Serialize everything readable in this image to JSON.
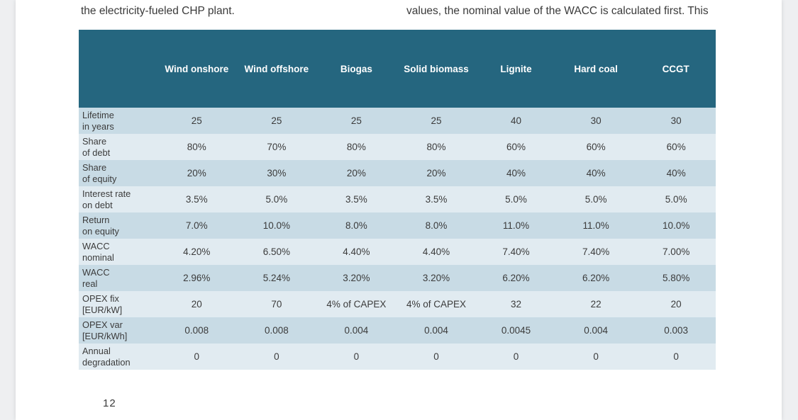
{
  "text": {
    "left_fragment": "the electricity-fueled CHP plant.",
    "right_fragment": "values, the nominal value of the WACC is calculated first. This"
  },
  "table": {
    "columns": [
      "Wind onshore",
      "Wind offshore",
      "Biogas",
      "Solid biomass",
      "Lignite",
      "Hard coal",
      "CCGT"
    ],
    "rows": [
      {
        "label_1": "Lifetime",
        "label_2": "in years",
        "values": [
          "25",
          "25",
          "25",
          "25",
          "40",
          "30",
          "30"
        ]
      },
      {
        "label_1": "Share",
        "label_2": "of debt",
        "values": [
          "80%",
          "70%",
          "80%",
          "80%",
          "60%",
          "60%",
          "60%"
        ]
      },
      {
        "label_1": "Share",
        "label_2": "of equity",
        "values": [
          "20%",
          "30%",
          "20%",
          "20%",
          "40%",
          "40%",
          "40%"
        ]
      },
      {
        "label_1": "Interest rate",
        "label_2": "on debt",
        "values": [
          "3.5%",
          "5.0%",
          "3.5%",
          "3.5%",
          "5.0%",
          "5.0%",
          "5.0%"
        ]
      },
      {
        "label_1": "Return",
        "label_2": "on equity",
        "values": [
          "7.0%",
          "10.0%",
          "8.0%",
          "8.0%",
          "11.0%",
          "11.0%",
          "10.0%"
        ]
      },
      {
        "label_1": "WACC",
        "label_2": "nominal",
        "values": [
          "4.20%",
          "6.50%",
          "4.40%",
          "4.40%",
          "7.40%",
          "7.40%",
          "7.00%"
        ]
      },
      {
        "label_1": "WACC",
        "label_2": "real",
        "values": [
          "2.96%",
          "5.24%",
          "3.20%",
          "3.20%",
          "6.20%",
          "6.20%",
          "5.80%"
        ]
      },
      {
        "label_1": "OPEX fix",
        "label_2": "[EUR/kW]",
        "values": [
          "20",
          "70",
          "4% of CAPEX",
          "4% of CAPEX",
          "32",
          "22",
          "20"
        ]
      },
      {
        "label_1": "OPEX var",
        "label_2": "[EUR/kWh]",
        "values": [
          "0.008",
          "0.008",
          "0.004",
          "0.004",
          "0.0045",
          "0.004",
          "0.003"
        ]
      },
      {
        "label_1": "Annual",
        "label_2": "degradation",
        "values": [
          "0",
          "0",
          "0",
          "0",
          "0",
          "0",
          "0"
        ]
      }
    ]
  },
  "page_number": "12",
  "colors": {
    "header_bg": "#25667f",
    "row_odd_bg": "#c8dbe5",
    "row_even_bg": "#e1ebf1"
  }
}
